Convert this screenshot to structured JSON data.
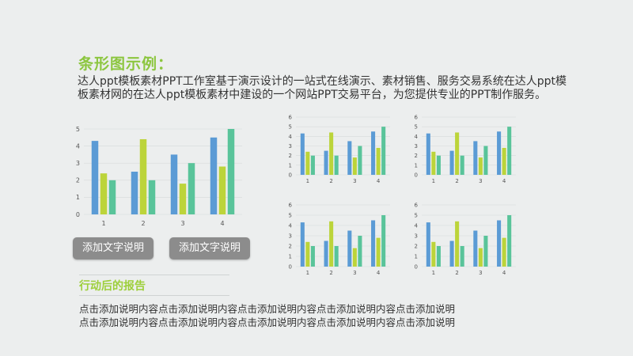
{
  "title": "条形图示例：",
  "intro": "达人ppt模板素材PPT工作室基于演示设计的一站式在线演示、素材销售、服务交易系统在达人ppt模板素材网的在达人ppt模板素材中建设的一个网站PPT交易平台，为您提供专业的PPT制作服务。",
  "buttons": [
    {
      "label": "添加文字说明"
    },
    {
      "label": "添加文字说明"
    }
  ],
  "section_heading": "行动后的报告",
  "body_lines": [
    "点击添加说明内容点击添加说明内容点击添加说明内容点击添加说明内容点击添加说明",
    "点击添加说明内容点击添加说明内容点击添加说明内容点击添加说明内容点击添加说明"
  ],
  "colors": {
    "series1": "#5b9bd5",
    "series2": "#bcd43a",
    "series3": "#59c49a",
    "title": "#8cc63f"
  },
  "chart_data": [
    {
      "type": "bar",
      "categories": [
        "1",
        "2",
        "3",
        "4"
      ],
      "ylim": [
        0,
        5
      ],
      "yticks": [
        0,
        1,
        2,
        3,
        4,
        5
      ],
      "series": [
        {
          "values": [
            4.3,
            2.5,
            3.5,
            4.5
          ]
        },
        {
          "values": [
            2.4,
            4.4,
            1.8,
            2.8
          ]
        },
        {
          "values": [
            2.0,
            2.0,
            3.0,
            5.0
          ]
        }
      ]
    },
    {
      "type": "bar",
      "categories": [
        "1",
        "2",
        "3",
        "4"
      ],
      "ylim": [
        0,
        6
      ],
      "yticks": [
        0,
        1,
        2,
        3,
        4,
        5,
        6
      ],
      "series": [
        {
          "values": [
            4.3,
            2.5,
            3.5,
            4.5
          ]
        },
        {
          "values": [
            2.4,
            4.4,
            1.8,
            2.8
          ]
        },
        {
          "values": [
            2.0,
            2.0,
            3.0,
            5.0
          ]
        }
      ]
    },
    {
      "type": "bar",
      "categories": [
        "1",
        "2",
        "3",
        "4"
      ],
      "ylim": [
        0,
        6
      ],
      "yticks": [
        0,
        1,
        2,
        3,
        4,
        5,
        6
      ],
      "series": [
        {
          "values": [
            4.3,
            2.5,
            3.5,
            4.5
          ]
        },
        {
          "values": [
            2.4,
            4.4,
            1.8,
            2.8
          ]
        },
        {
          "values": [
            2.0,
            2.0,
            3.0,
            5.0
          ]
        }
      ]
    },
    {
      "type": "bar",
      "categories": [
        "1",
        "2",
        "3",
        "4"
      ],
      "ylim": [
        0,
        6
      ],
      "yticks": [
        0,
        1,
        2,
        3,
        4,
        5,
        6
      ],
      "series": [
        {
          "values": [
            4.3,
            2.5,
            3.5,
            4.5
          ]
        },
        {
          "values": [
            2.4,
            4.4,
            1.8,
            2.8
          ]
        },
        {
          "values": [
            2.0,
            2.0,
            3.0,
            5.0
          ]
        }
      ]
    },
    {
      "type": "bar",
      "categories": [
        "1",
        "2",
        "3",
        "4"
      ],
      "ylim": [
        0,
        6
      ],
      "yticks": [
        0,
        1,
        2,
        3,
        4,
        5,
        6
      ],
      "series": [
        {
          "values": [
            4.3,
            2.5,
            3.5,
            4.5
          ]
        },
        {
          "values": [
            2.4,
            4.4,
            1.8,
            2.8
          ]
        },
        {
          "values": [
            2.0,
            2.0,
            3.0,
            5.0
          ]
        }
      ]
    }
  ]
}
